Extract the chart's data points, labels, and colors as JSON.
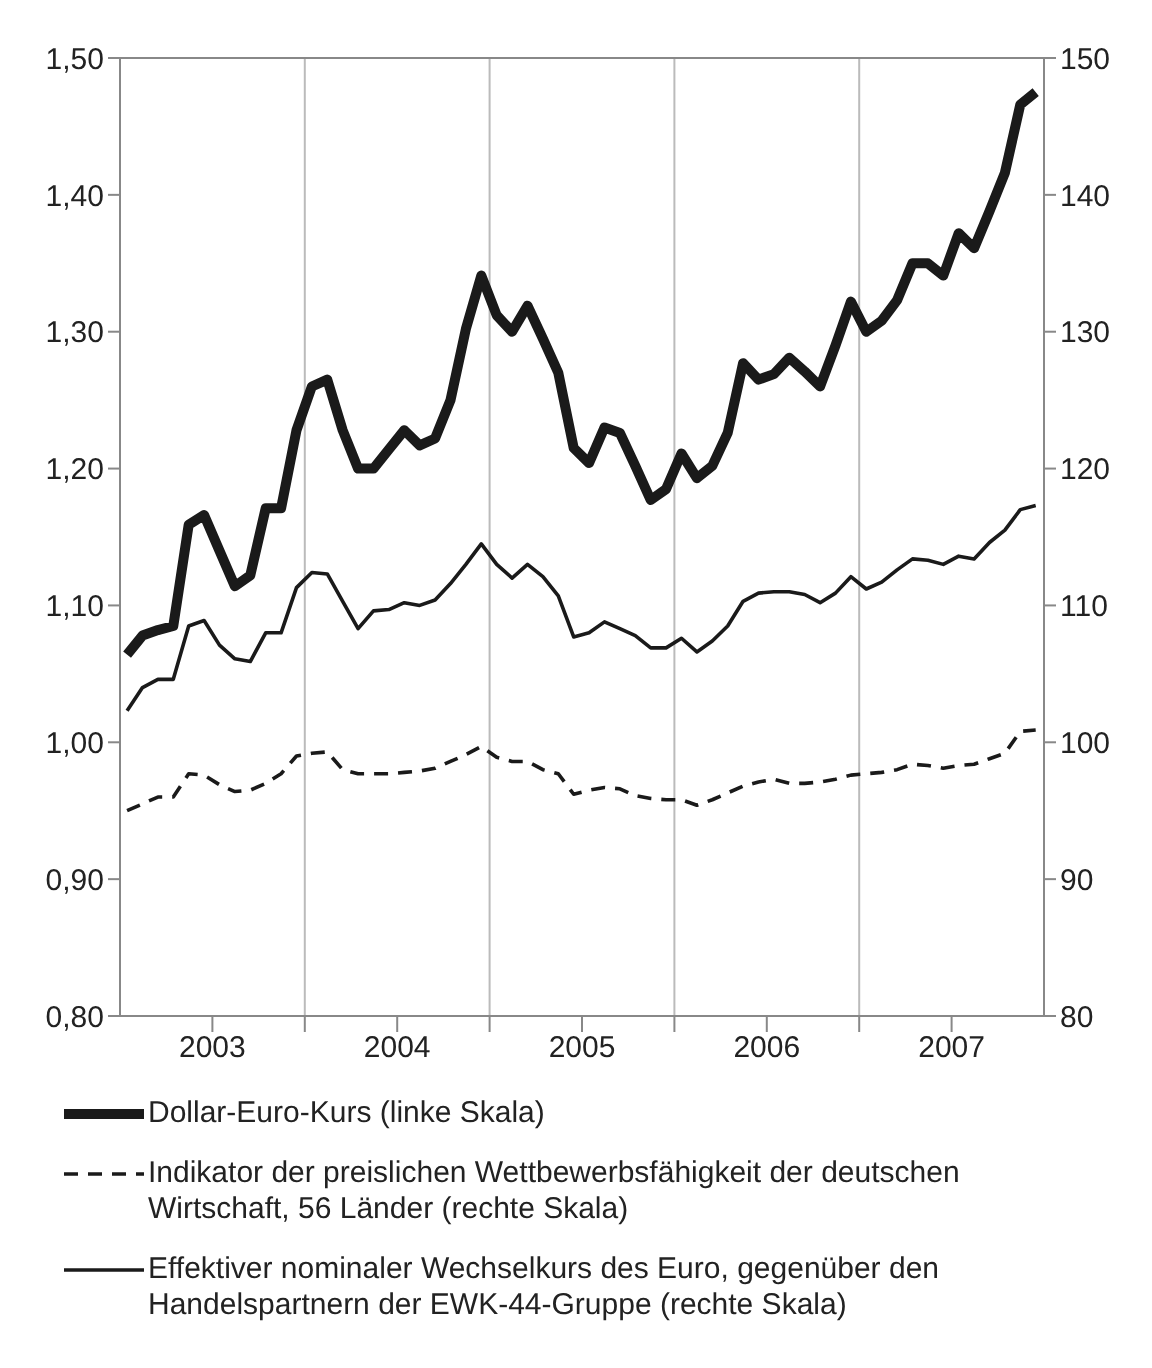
{
  "chart_data": {
    "type": "line",
    "x": [
      "2003-01-15",
      "2003-02-15",
      "2003-03-15",
      "2003-04-15",
      "2003-05-15",
      "2003-06-15",
      "2003-07-15",
      "2003-08-15",
      "2003-09-15",
      "2003-10-15",
      "2003-11-15",
      "2003-12-15",
      "2004-01-15",
      "2004-02-15",
      "2004-03-15",
      "2004-04-15",
      "2004-05-15",
      "2004-06-15",
      "2004-07-15",
      "2004-08-15",
      "2004-09-15",
      "2004-10-15",
      "2004-11-15",
      "2004-12-15",
      "2005-01-15",
      "2005-02-15",
      "2005-03-15",
      "2005-04-15",
      "2005-05-15",
      "2005-06-15",
      "2005-07-15",
      "2005-08-15",
      "2005-09-15",
      "2005-10-15",
      "2005-11-15",
      "2005-12-15",
      "2006-01-15",
      "2006-02-15",
      "2006-03-15",
      "2006-04-15",
      "2006-05-15",
      "2006-06-15",
      "2006-07-15",
      "2006-08-15",
      "2006-09-15",
      "2006-10-15",
      "2006-11-15",
      "2006-12-15",
      "2007-01-15",
      "2007-02-15",
      "2007-03-15",
      "2007-04-15",
      "2007-05-15",
      "2007-06-15",
      "2007-07-15",
      "2007-08-15",
      "2007-09-15",
      "2007-10-15",
      "2007-11-15",
      "2007-12-15"
    ],
    "series": [
      {
        "name": "Dollar-Euro-Kurs (linke Skala)",
        "color": "#1a1a1a",
        "line_style": "solid",
        "values": [
          1.064,
          1.078,
          1.082,
          1.085,
          1.159,
          1.166,
          1.14,
          1.114,
          1.122,
          1.171,
          1.171,
          1.228,
          1.26,
          1.265,
          1.228,
          1.2,
          1.2,
          1.214,
          1.228,
          1.217,
          1.222,
          1.25,
          1.302,
          1.341,
          1.312,
          1.3,
          1.319,
          1.295,
          1.27,
          1.215,
          1.204,
          1.23,
          1.226,
          1.202,
          1.177,
          1.185,
          1.211,
          1.193,
          1.202,
          1.226,
          1.277,
          1.265,
          1.269,
          1.281,
          1.271,
          1.26,
          1.29,
          1.322,
          1.3,
          1.308,
          1.323,
          1.35,
          1.35,
          1.341,
          1.372,
          1.361,
          1.388,
          1.416,
          1.466,
          1.475
        ]
      },
      {
        "name": "Indikator der preislichen Wettbewerbsfähigkeit der deutschen Wirtschaft, 56 Länder (rechte Skala)",
        "color": "#1a1a1a",
        "line_style": "dashed",
        "axis": "y2",
        "values": [
          95.0,
          95.5,
          96.0,
          96.0,
          97.7,
          97.6,
          96.9,
          96.4,
          96.5,
          97.0,
          97.7,
          99.0,
          99.2,
          99.3,
          98.0,
          97.7,
          97.7,
          97.7,
          97.8,
          97.9,
          98.1,
          98.6,
          99.1,
          99.7,
          98.9,
          98.6,
          98.6,
          98.0,
          97.7,
          96.2,
          96.5,
          96.7,
          96.6,
          96.1,
          95.9,
          95.8,
          95.8,
          95.4,
          95.8,
          96.3,
          96.8,
          97.1,
          97.3,
          97.0,
          97.0,
          97.1,
          97.3,
          97.6,
          97.7,
          97.8,
          98.0,
          98.4,
          98.3,
          98.1,
          98.3,
          98.4,
          98.8,
          99.2,
          100.8,
          100.9
        ]
      },
      {
        "name": "Effektiver nominaler Wechselkurs des Euro, gegenüber den Handelspartnern der EWK-44-Gruppe (rechte Skala)",
        "color": "#1a1a1a",
        "line_style": "solid",
        "axis": "y2",
        "values": [
          102.3,
          104.0,
          104.6,
          104.6,
          108.5,
          108.9,
          107.1,
          106.1,
          105.9,
          108.0,
          108.0,
          111.3,
          112.4,
          112.3,
          110.3,
          108.3,
          109.6,
          109.7,
          110.2,
          110.0,
          110.4,
          111.6,
          113.0,
          114.5,
          113.0,
          112.0,
          113.0,
          112.1,
          110.7,
          107.7,
          108.0,
          108.8,
          108.3,
          107.8,
          106.9,
          106.9,
          107.6,
          106.6,
          107.4,
          108.5,
          110.3,
          110.9,
          111.0,
          111.0,
          110.8,
          110.2,
          110.9,
          112.1,
          111.2,
          111.7,
          112.6,
          113.4,
          113.3,
          113.0,
          113.6,
          113.4,
          114.6,
          115.5,
          117.0,
          117.3
        ]
      }
    ],
    "xlim": [
      "2003-01-01",
      "2008-01-01"
    ],
    "xticks": [
      {
        "value": "2003-07-01",
        "label": "2003"
      },
      {
        "value": "2004-01-01",
        "label": null
      },
      {
        "value": "2004-07-01",
        "label": "2004"
      },
      {
        "value": "2005-01-01",
        "label": null
      },
      {
        "value": "2005-07-01",
        "label": "2005"
      },
      {
        "value": "2006-01-01",
        "label": null
      },
      {
        "value": "2006-07-01",
        "label": "2006"
      },
      {
        "value": "2007-01-01",
        "label": null
      },
      {
        "value": "2007-07-01",
        "label": "2007"
      }
    ],
    "ylim": [
      0.8,
      1.5
    ],
    "yticks": [
      {
        "value": 0.8,
        "label": "0,80"
      },
      {
        "value": 0.9,
        "label": "0,90"
      },
      {
        "value": 1.0,
        "label": "1,00"
      },
      {
        "value": 1.1,
        "label": "1,10"
      },
      {
        "value": 1.2,
        "label": "1,20"
      },
      {
        "value": 1.3,
        "label": "1,30"
      },
      {
        "value": 1.4,
        "label": "1,40"
      },
      {
        "value": 1.5,
        "label": "1,50"
      }
    ],
    "y2lim": [
      80,
      150
    ],
    "y2ticks": [
      80,
      90,
      100,
      110,
      120,
      130,
      140,
      150
    ],
    "ref_lines": [
      {
        "axis": "x",
        "value": "2004-01-01",
        "color": "#bbbbbb"
      },
      {
        "axis": "x",
        "value": "2005-01-01",
        "color": "#bbbbbb"
      },
      {
        "axis": "x",
        "value": "2006-01-01",
        "color": "#bbbbbb"
      },
      {
        "axis": "x",
        "value": "2007-01-01",
        "color": "#bbbbbb"
      }
    ],
    "legend": "bottom",
    "marker": "none"
  }
}
